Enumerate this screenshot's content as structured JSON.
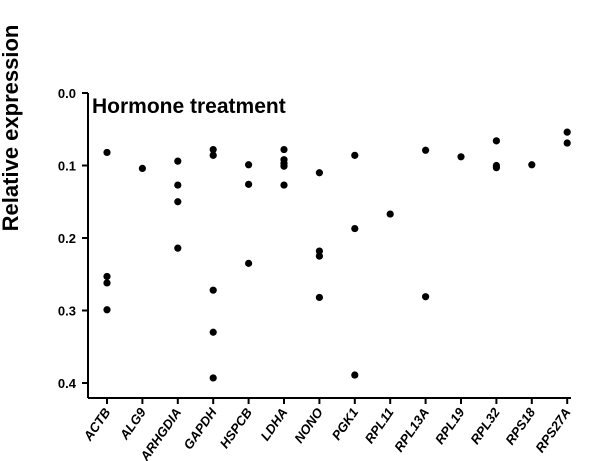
{
  "chart_data": {
    "type": "scatter",
    "ylabel": "Relative expression",
    "annotation": "Hormone treatment",
    "ylim": [
      0.0,
      0.4
    ],
    "y_inverted": true,
    "yticks": [
      "0.0",
      "0.1",
      "0.2",
      "0.3",
      "0.4"
    ],
    "grid": false,
    "categories": [
      "ACTB",
      "ALG9",
      "ARHGDIA",
      "GAPDH",
      "HSPCB",
      "LDHA",
      "NONO",
      "PGK1",
      "RPL11",
      "RPL13A",
      "RPL19",
      "RPL32",
      "RPS18",
      "RPS27A"
    ],
    "points": [
      {
        "category": "ACTB",
        "values": [
          0.082,
          0.253,
          0.262,
          0.299
        ]
      },
      {
        "category": "ALG9",
        "values": [
          0.104
        ]
      },
      {
        "category": "ARHGDIA",
        "values": [
          0.094,
          0.127,
          0.15,
          0.214
        ]
      },
      {
        "category": "GAPDH",
        "values": [
          0.078,
          0.086,
          0.272,
          0.33,
          0.393
        ]
      },
      {
        "category": "HSPCB",
        "values": [
          0.099,
          0.126,
          0.235
        ]
      },
      {
        "category": "LDHA",
        "values": [
          0.078,
          0.092,
          0.097,
          0.101,
          0.127
        ]
      },
      {
        "category": "NONO",
        "values": [
          0.11,
          0.218,
          0.225,
          0.282
        ]
      },
      {
        "category": "PGK1",
        "values": [
          0.086,
          0.187,
          0.389
        ]
      },
      {
        "category": "RPL11",
        "values": [
          0.167
        ]
      },
      {
        "category": "RPL13A",
        "values": [
          0.079,
          0.281
        ]
      },
      {
        "category": "RPL19",
        "values": [
          0.088
        ]
      },
      {
        "category": "RPL32",
        "values": [
          0.066,
          0.1,
          0.103
        ]
      },
      {
        "category": "RPS18",
        "values": [
          0.099
        ]
      },
      {
        "category": "RPS27A",
        "values": [
          0.054,
          0.069
        ]
      }
    ]
  }
}
